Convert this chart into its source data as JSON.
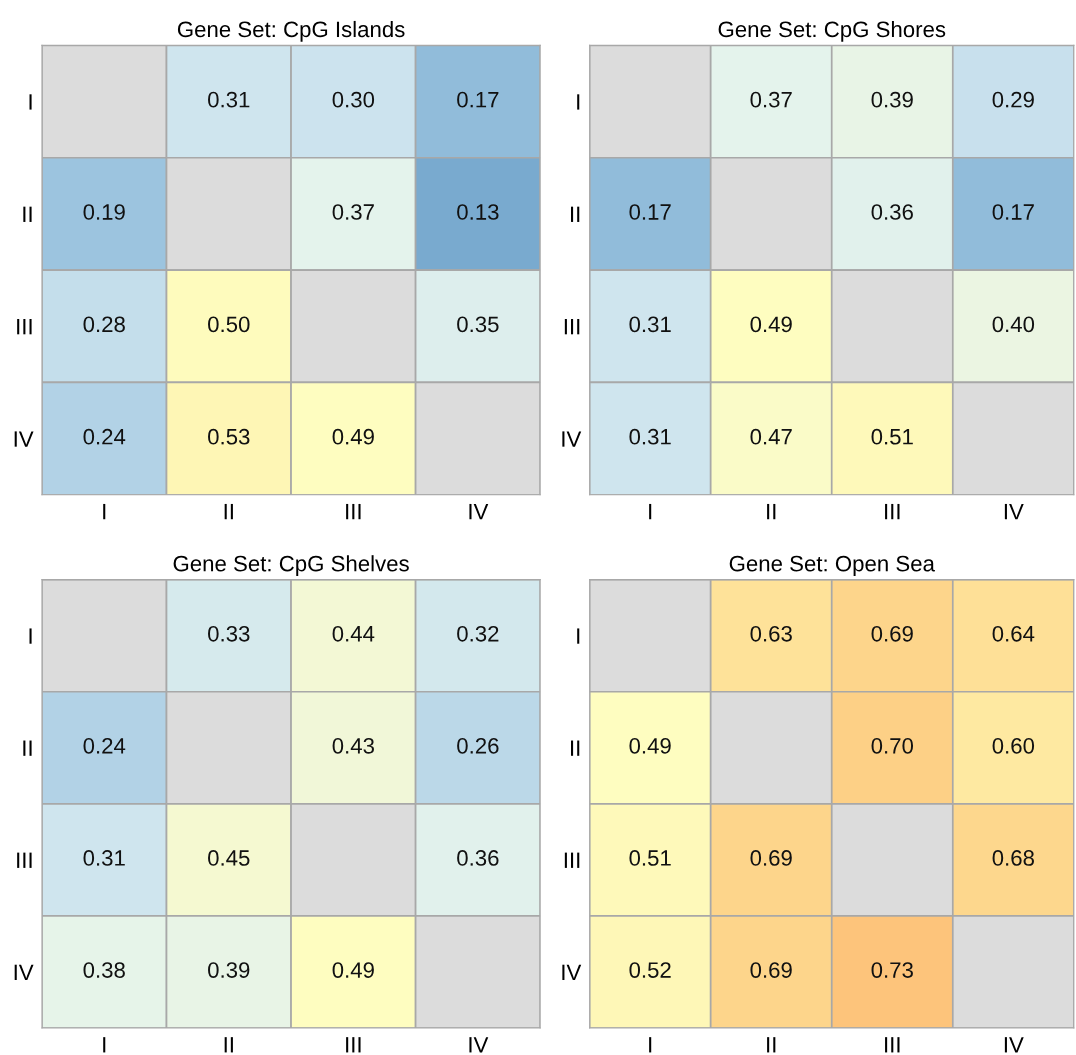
{
  "chart_data": [
    {
      "type": "heatmap",
      "title": "Gene Set: CpG Islands",
      "categories": [
        "I",
        "II",
        "III",
        "IV"
      ],
      "y_categories": [
        "I",
        "II",
        "III",
        "IV"
      ],
      "cells": [
        [
          null,
          0.31,
          0.3,
          0.17
        ],
        [
          0.19,
          null,
          0.37,
          0.13
        ],
        [
          0.28,
          0.5,
          null,
          0.35
        ],
        [
          0.24,
          0.53,
          0.49,
          null
        ]
      ],
      "cell_labels": [
        [
          null,
          "0.31",
          "0.30",
          "0.17"
        ],
        [
          "0.19",
          null,
          "0.37",
          "0.13"
        ],
        [
          "0.28",
          "0.50",
          null,
          "0.35"
        ],
        [
          "0.24",
          "0.53",
          "0.49",
          null
        ]
      ]
    },
    {
      "type": "heatmap",
      "title": "Gene Set: CpG Shores",
      "categories": [
        "I",
        "II",
        "III",
        "IV"
      ],
      "y_categories": [
        "I",
        "II",
        "III",
        "IV"
      ],
      "cells": [
        [
          null,
          0.37,
          0.39,
          0.29
        ],
        [
          0.17,
          null,
          0.36,
          0.17
        ],
        [
          0.31,
          0.49,
          null,
          0.4
        ],
        [
          0.31,
          0.47,
          0.51,
          null
        ]
      ],
      "cell_labels": [
        [
          null,
          "0.37",
          "0.39",
          "0.29"
        ],
        [
          "0.17",
          null,
          "0.36",
          "0.17"
        ],
        [
          "0.31",
          "0.49",
          null,
          "0.40"
        ],
        [
          "0.31",
          "0.47",
          "0.51",
          null
        ]
      ]
    },
    {
      "type": "heatmap",
      "title": "Gene Set: CpG Shelves",
      "categories": [
        "I",
        "II",
        "III",
        "IV"
      ],
      "y_categories": [
        "I",
        "II",
        "III",
        "IV"
      ],
      "cells": [
        [
          null,
          0.33,
          0.44,
          0.32
        ],
        [
          0.24,
          null,
          0.43,
          0.26
        ],
        [
          0.31,
          0.45,
          null,
          0.36
        ],
        [
          0.38,
          0.39,
          0.49,
          null
        ]
      ],
      "cell_labels": [
        [
          null,
          "0.33",
          "0.44",
          "0.32"
        ],
        [
          "0.24",
          null,
          "0.43",
          "0.26"
        ],
        [
          "0.31",
          "0.45",
          null,
          "0.36"
        ],
        [
          "0.38",
          "0.39",
          "0.49",
          null
        ]
      ]
    },
    {
      "type": "heatmap",
      "title": "Gene Set: Open Sea",
      "categories": [
        "I",
        "II",
        "III",
        "IV"
      ],
      "y_categories": [
        "I",
        "II",
        "III",
        "IV"
      ],
      "cells": [
        [
          null,
          0.63,
          0.69,
          0.64
        ],
        [
          0.49,
          null,
          0.7,
          0.6
        ],
        [
          0.51,
          0.69,
          null,
          0.68
        ],
        [
          0.52,
          0.69,
          0.73,
          null
        ]
      ],
      "cell_labels": [
        [
          null,
          "0.63",
          "0.69",
          "0.64"
        ],
        [
          "0.49",
          null,
          "0.70",
          "0.60"
        ],
        [
          "0.51",
          "0.69",
          null,
          "0.68"
        ],
        [
          "0.52",
          "0.69",
          "0.73",
          null
        ]
      ]
    }
  ]
}
